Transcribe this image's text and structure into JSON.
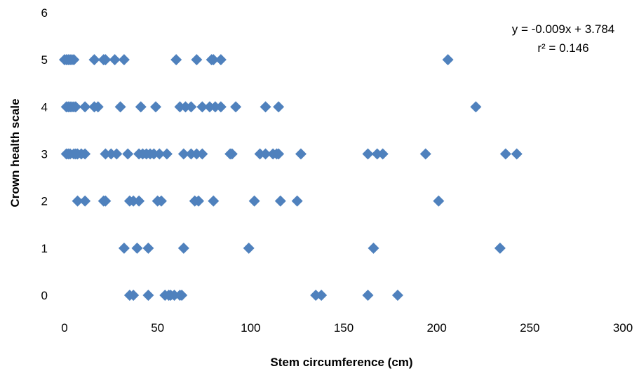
{
  "chart_data": {
    "type": "scatter",
    "title": "",
    "xlabel": "Stem circumference (cm)",
    "ylabel": "Crown health scale",
    "xlim": [
      0,
      300
    ],
    "ylim": [
      0,
      6
    ],
    "xticks": [
      "0",
      "50",
      "100",
      "150",
      "200",
      "250",
      "300"
    ],
    "yticks": [
      "0",
      "1",
      "2",
      "3",
      "4",
      "5",
      "6"
    ],
    "grid": false,
    "legend": "none",
    "annotation": {
      "equation": "y = -0.009x + 3.784",
      "r2": "r² = 0.146"
    },
    "marker": {
      "shape": "diamond",
      "color": "#4F81BD"
    },
    "series": [
      {
        "points": [
          [
            0,
            5
          ],
          [
            1,
            5
          ],
          [
            2,
            5
          ],
          [
            3,
            5
          ],
          [
            4,
            5
          ],
          [
            5,
            5
          ],
          [
            16,
            5
          ],
          [
            21,
            5
          ],
          [
            22,
            5
          ],
          [
            27,
            5
          ],
          [
            32,
            5
          ],
          [
            60,
            5
          ],
          [
            71,
            5
          ],
          [
            79,
            5
          ],
          [
            80,
            5
          ],
          [
            84,
            5
          ],
          [
            206,
            5
          ],
          [
            1,
            4
          ],
          [
            2,
            4
          ],
          [
            3,
            4
          ],
          [
            4,
            4
          ],
          [
            5,
            4
          ],
          [
            6,
            4
          ],
          [
            11,
            4
          ],
          [
            16,
            4
          ],
          [
            18,
            4
          ],
          [
            30,
            4
          ],
          [
            41,
            4
          ],
          [
            49,
            4
          ],
          [
            62,
            4
          ],
          [
            65,
            4
          ],
          [
            68,
            4
          ],
          [
            74,
            4
          ],
          [
            78,
            4
          ],
          [
            81,
            4
          ],
          [
            84,
            4
          ],
          [
            92,
            4
          ],
          [
            108,
            4
          ],
          [
            115,
            4
          ],
          [
            221,
            4
          ],
          [
            1,
            3
          ],
          [
            2,
            3
          ],
          [
            3,
            3
          ],
          [
            5,
            3
          ],
          [
            6,
            3
          ],
          [
            7,
            3
          ],
          [
            9,
            3
          ],
          [
            11,
            3
          ],
          [
            22,
            3
          ],
          [
            25,
            3
          ],
          [
            28,
            3
          ],
          [
            34,
            3
          ],
          [
            40,
            3
          ],
          [
            42,
            3
          ],
          [
            44,
            3
          ],
          [
            46,
            3
          ],
          [
            48,
            3
          ],
          [
            51,
            3
          ],
          [
            55,
            3
          ],
          [
            64,
            3
          ],
          [
            68,
            3
          ],
          [
            71,
            3
          ],
          [
            74,
            3
          ],
          [
            89,
            3
          ],
          [
            90,
            3
          ],
          [
            105,
            3
          ],
          [
            108,
            3
          ],
          [
            112,
            3
          ],
          [
            114,
            3
          ],
          [
            115,
            3
          ],
          [
            127,
            3
          ],
          [
            163,
            3
          ],
          [
            168,
            3
          ],
          [
            171,
            3
          ],
          [
            194,
            3
          ],
          [
            237,
            3
          ],
          [
            243,
            3
          ],
          [
            7,
            2
          ],
          [
            11,
            2
          ],
          [
            21,
            2
          ],
          [
            22,
            2
          ],
          [
            35,
            2
          ],
          [
            37,
            2
          ],
          [
            40,
            2
          ],
          [
            50,
            2
          ],
          [
            52,
            2
          ],
          [
            70,
            2
          ],
          [
            72,
            2
          ],
          [
            80,
            2
          ],
          [
            102,
            2
          ],
          [
            116,
            2
          ],
          [
            125,
            2
          ],
          [
            201,
            2
          ],
          [
            32,
            1
          ],
          [
            39,
            1
          ],
          [
            45,
            1
          ],
          [
            64,
            1
          ],
          [
            99,
            1
          ],
          [
            166,
            1
          ],
          [
            234,
            1
          ],
          [
            35,
            0
          ],
          [
            37,
            0
          ],
          [
            45,
            0
          ],
          [
            54,
            0
          ],
          [
            56,
            0
          ],
          [
            57,
            0
          ],
          [
            59,
            0
          ],
          [
            62,
            0
          ],
          [
            63,
            0
          ],
          [
            135,
            0
          ],
          [
            138,
            0
          ],
          [
            163,
            0
          ],
          [
            179,
            0
          ]
        ]
      }
    ]
  }
}
